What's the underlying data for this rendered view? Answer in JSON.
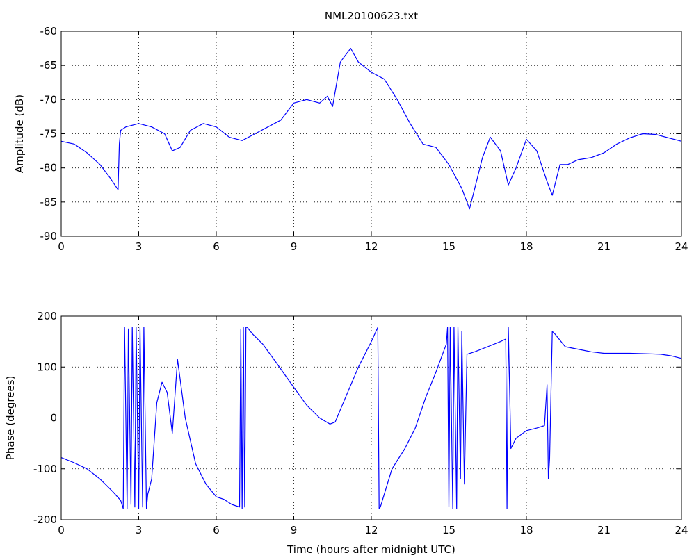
{
  "figure": {
    "title": "NML20100623.txt",
    "line_color": "#0000ff",
    "grid": "dotted"
  },
  "chart_data": [
    {
      "type": "line",
      "title": "NML20100623.txt",
      "xlabel": "",
      "ylabel": "Amplitude (dB)",
      "xlim": [
        0,
        24
      ],
      "ylim": [
        -90,
        -60
      ],
      "xticks": [
        0,
        3,
        6,
        9,
        12,
        15,
        18,
        21,
        24
      ],
      "yticks": [
        -90,
        -85,
        -80,
        -75,
        -70,
        -65,
        -60
      ],
      "grid": true,
      "series": [
        {
          "color": "#0000ff",
          "x": [
            0,
            0.5,
            1.0,
            1.5,
            1.9,
            2.2,
            2.25,
            2.3,
            2.5,
            3.0,
            3.5,
            4.0,
            4.3,
            4.6,
            5.0,
            5.5,
            6.0,
            6.5,
            7.0,
            7.5,
            8.0,
            8.5,
            9.0,
            9.5,
            10.0,
            10.3,
            10.5,
            10.8,
            11.0,
            11.2,
            11.5,
            12.0,
            12.5,
            13.0,
            13.5,
            14.0,
            14.5,
            15.0,
            15.5,
            15.8,
            16.0,
            16.3,
            16.6,
            17.0,
            17.3,
            17.6,
            18.0,
            18.4,
            18.8,
            19.0,
            19.3,
            19.6,
            20.0,
            20.5,
            21.0,
            21.5,
            22.0,
            22.5,
            23.0,
            23.5,
            24.0
          ],
          "y": [
            -76.1,
            -76.5,
            -77.8,
            -79.5,
            -81.5,
            -83.2,
            -76.5,
            -74.5,
            -74.0,
            -73.5,
            -74.0,
            -75.0,
            -77.5,
            -77.0,
            -74.5,
            -73.5,
            -74.0,
            -75.5,
            -76.0,
            -75.0,
            -74.0,
            -73.0,
            -70.5,
            -70.0,
            -70.5,
            -69.5,
            -71.0,
            -64.5,
            -63.5,
            -62.5,
            -64.5,
            -66.0,
            -67.0,
            -70.0,
            -73.5,
            -76.5,
            -77.0,
            -79.5,
            -83.0,
            -86.0,
            -83.0,
            -78.5,
            -75.5,
            -77.5,
            -82.5,
            -80.0,
            -75.8,
            -77.5,
            -82.0,
            -84.0,
            -79.5,
            -79.5,
            -78.8,
            -78.5,
            -77.8,
            -76.5,
            -75.6,
            -75.0,
            -75.1,
            -75.6,
            -76.1
          ]
        }
      ]
    },
    {
      "type": "line",
      "title": "",
      "xlabel": "Time (hours after midnight UTC)",
      "ylabel": "Phase (degrees)",
      "xlim": [
        0,
        24
      ],
      "ylim": [
        -200,
        200
      ],
      "xticks": [
        0,
        3,
        6,
        9,
        12,
        15,
        18,
        21,
        24
      ],
      "yticks": [
        -200,
        -100,
        0,
        100,
        200
      ],
      "grid": true,
      "series": [
        {
          "color": "#0000ff",
          "x": [
            0,
            0.5,
            1.0,
            1.5,
            2.0,
            2.3,
            2.4,
            2.45,
            2.55,
            2.6,
            2.7,
            2.75,
            2.85,
            2.9,
            3.0,
            3.05,
            3.15,
            3.2,
            3.3,
            3.35,
            3.5,
            3.7,
            3.9,
            4.1,
            4.3,
            4.5,
            4.8,
            5.2,
            5.6,
            6.0,
            6.3,
            6.6,
            6.9,
            6.95,
            7.0,
            7.05,
            7.1,
            7.15,
            7.2,
            7.4,
            7.8,
            8.3,
            9.0,
            9.5,
            10.0,
            10.4,
            10.6,
            11.0,
            11.5,
            12.0,
            12.25,
            12.3,
            12.35,
            12.8,
            13.3,
            13.7,
            14.1,
            14.5,
            14.9,
            14.95,
            15.0,
            15.05,
            15.15,
            15.2,
            15.3,
            15.35,
            15.45,
            15.5,
            15.6,
            15.7,
            16.0,
            16.5,
            17.0,
            17.2,
            17.25,
            17.3,
            17.4,
            17.6,
            18.0,
            18.4,
            18.7,
            18.8,
            18.85,
            18.9,
            19.0,
            19.1,
            19.5,
            20.0,
            20.5,
            21.0,
            22.0,
            22.7,
            23.2,
            23.6,
            24.0
          ],
          "y": [
            -78,
            -88,
            -100,
            -120,
            -145,
            -162,
            -178,
            178,
            -178,
            175,
            -170,
            178,
            -175,
            178,
            -178,
            178,
            -175,
            178,
            -178,
            -150,
            -120,
            30,
            70,
            50,
            -30,
            115,
            0,
            -90,
            -130,
            -155,
            -160,
            -170,
            -175,
            175,
            -178,
            178,
            -175,
            178,
            178,
            165,
            145,
            110,
            60,
            25,
            0,
            -12,
            -8,
            40,
            100,
            150,
            178,
            -178,
            -175,
            -100,
            -60,
            -20,
            40,
            90,
            145,
            178,
            -175,
            178,
            -178,
            178,
            -178,
            178,
            -120,
            170,
            -130,
            125,
            130,
            140,
            150,
            155,
            -178,
            178,
            -60,
            -40,
            -25,
            -20,
            -15,
            65,
            -120,
            -80,
            170,
            165,
            140,
            135,
            130,
            127,
            127,
            126,
            125,
            122,
            117
          ]
        }
      ]
    }
  ]
}
